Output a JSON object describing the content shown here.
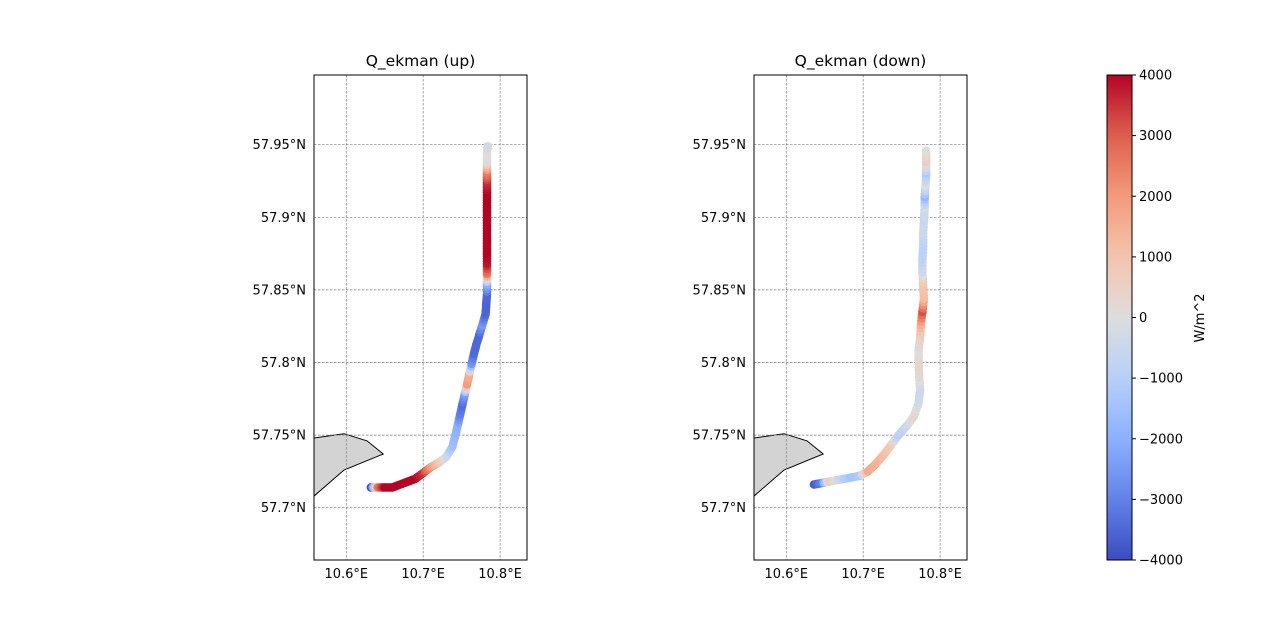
{
  "chart_data": [
    {
      "type": "scatter",
      "title": "Q_ekman (up)",
      "xlabel": "",
      "ylabel": "",
      "xlim": [
        10.558,
        10.835
      ],
      "ylim": [
        57.664,
        57.998
      ],
      "grid": true,
      "x_ticks": [
        10.6,
        10.7,
        10.8
      ],
      "x_tick_labels": [
        "10.6°E",
        "10.7°E",
        "10.8°E"
      ],
      "y_ticks": [
        57.7,
        57.75,
        57.8,
        57.85,
        57.9,
        57.95
      ],
      "y_tick_labels": [
        "57.7°N",
        "57.75°N",
        "57.8°N",
        "57.85°N",
        "57.9°N",
        "57.95°N"
      ],
      "coastline": [
        [
          10.558,
          57.708
        ],
        [
          10.597,
          57.726
        ],
        [
          10.648,
          57.737
        ],
        [
          10.627,
          57.746
        ],
        [
          10.597,
          57.751
        ],
        [
          10.558,
          57.748
        ]
      ],
      "points": [
        {
          "x": 10.632,
          "y": 57.714,
          "v": -4000
        },
        {
          "x": 10.641,
          "y": 57.714,
          "v": 2500
        },
        {
          "x": 10.65,
          "y": 57.714,
          "v": 4000
        },
        {
          "x": 10.66,
          "y": 57.714,
          "v": 4000
        },
        {
          "x": 10.67,
          "y": 57.716,
          "v": 4000
        },
        {
          "x": 10.68,
          "y": 57.718,
          "v": 4000
        },
        {
          "x": 10.69,
          "y": 57.72,
          "v": 4000
        },
        {
          "x": 10.7,
          "y": 57.724,
          "v": 3500
        },
        {
          "x": 10.71,
          "y": 57.728,
          "v": 2000
        },
        {
          "x": 10.72,
          "y": 57.731,
          "v": 1000
        },
        {
          "x": 10.73,
          "y": 57.735,
          "v": -300
        },
        {
          "x": 10.738,
          "y": 57.742,
          "v": -1500
        },
        {
          "x": 10.742,
          "y": 57.75,
          "v": -1800
        },
        {
          "x": 10.745,
          "y": 57.757,
          "v": -2000
        },
        {
          "x": 10.748,
          "y": 57.764,
          "v": -3000
        },
        {
          "x": 10.751,
          "y": 57.771,
          "v": -3400
        },
        {
          "x": 10.754,
          "y": 57.778,
          "v": -2500
        },
        {
          "x": 10.757,
          "y": 57.785,
          "v": 2000
        },
        {
          "x": 10.76,
          "y": 57.792,
          "v": 1500
        },
        {
          "x": 10.763,
          "y": 57.799,
          "v": -2500
        },
        {
          "x": 10.766,
          "y": 57.806,
          "v": -3400
        },
        {
          "x": 10.769,
          "y": 57.812,
          "v": -3500
        },
        {
          "x": 10.773,
          "y": 57.819,
          "v": -3500
        },
        {
          "x": 10.777,
          "y": 57.826,
          "v": -2500
        },
        {
          "x": 10.781,
          "y": 57.833,
          "v": -3500
        },
        {
          "x": 10.782,
          "y": 57.84,
          "v": -3600
        },
        {
          "x": 10.783,
          "y": 57.847,
          "v": -3500
        },
        {
          "x": 10.783,
          "y": 57.854,
          "v": -2000
        },
        {
          "x": 10.783,
          "y": 57.861,
          "v": 2500
        },
        {
          "x": 10.783,
          "y": 57.868,
          "v": 3800
        },
        {
          "x": 10.783,
          "y": 57.875,
          "v": 4000
        },
        {
          "x": 10.783,
          "y": 57.882,
          "v": 4000
        },
        {
          "x": 10.783,
          "y": 57.889,
          "v": 4000
        },
        {
          "x": 10.783,
          "y": 57.896,
          "v": 4000
        },
        {
          "x": 10.783,
          "y": 57.903,
          "v": 4000
        },
        {
          "x": 10.783,
          "y": 57.91,
          "v": 4000
        },
        {
          "x": 10.783,
          "y": 57.917,
          "v": 4000
        },
        {
          "x": 10.783,
          "y": 57.924,
          "v": 3600
        },
        {
          "x": 10.783,
          "y": 57.931,
          "v": 2500
        },
        {
          "x": 10.783,
          "y": 57.938,
          "v": 200
        },
        {
          "x": 10.783,
          "y": 57.945,
          "v": 0
        },
        {
          "x": 10.784,
          "y": 57.949,
          "v": -300
        }
      ]
    },
    {
      "type": "scatter",
      "title": "Q_ekman (down)",
      "xlabel": "",
      "ylabel": "",
      "xlim": [
        10.558,
        10.835
      ],
      "ylim": [
        57.664,
        57.998
      ],
      "grid": true,
      "x_ticks": [
        10.6,
        10.7,
        10.8
      ],
      "x_tick_labels": [
        "10.6°E",
        "10.7°E",
        "10.8°E"
      ],
      "y_ticks": [
        57.7,
        57.75,
        57.8,
        57.85,
        57.9,
        57.95
      ],
      "y_tick_labels": [
        "57.7°N",
        "57.75°N",
        "57.8°N",
        "57.85°N",
        "57.9°N",
        "57.95°N"
      ],
      "coastline": [
        [
          10.558,
          57.708
        ],
        [
          10.597,
          57.726
        ],
        [
          10.648,
          57.737
        ],
        [
          10.627,
          57.746
        ],
        [
          10.597,
          57.751
        ],
        [
          10.558,
          57.748
        ]
      ],
      "points": [
        {
          "x": 10.636,
          "y": 57.716,
          "v": -3800
        },
        {
          "x": 10.646,
          "y": 57.717,
          "v": -3000
        },
        {
          "x": 10.656,
          "y": 57.718,
          "v": 700
        },
        {
          "x": 10.666,
          "y": 57.719,
          "v": -200
        },
        {
          "x": 10.676,
          "y": 57.72,
          "v": -1000
        },
        {
          "x": 10.686,
          "y": 57.721,
          "v": -1400
        },
        {
          "x": 10.696,
          "y": 57.722,
          "v": -1200
        },
        {
          "x": 10.706,
          "y": 57.725,
          "v": 1600
        },
        {
          "x": 10.716,
          "y": 57.73,
          "v": 1500
        },
        {
          "x": 10.726,
          "y": 57.736,
          "v": 1200
        },
        {
          "x": 10.736,
          "y": 57.743,
          "v": 800
        },
        {
          "x": 10.746,
          "y": 57.75,
          "v": -1000
        },
        {
          "x": 10.756,
          "y": 57.756,
          "v": -500
        },
        {
          "x": 10.766,
          "y": 57.763,
          "v": 400
        },
        {
          "x": 10.772,
          "y": 57.772,
          "v": -300
        },
        {
          "x": 10.774,
          "y": 57.781,
          "v": -500
        },
        {
          "x": 10.773,
          "y": 57.79,
          "v": 200
        },
        {
          "x": 10.772,
          "y": 57.799,
          "v": 400
        },
        {
          "x": 10.772,
          "y": 57.808,
          "v": 0
        },
        {
          "x": 10.774,
          "y": 57.817,
          "v": 500
        },
        {
          "x": 10.775,
          "y": 57.826,
          "v": 1500
        },
        {
          "x": 10.777,
          "y": 57.835,
          "v": 3200
        },
        {
          "x": 10.779,
          "y": 57.844,
          "v": 1200
        },
        {
          "x": 10.778,
          "y": 57.853,
          "v": 1000
        },
        {
          "x": 10.777,
          "y": 57.862,
          "v": -300
        },
        {
          "x": 10.777,
          "y": 57.871,
          "v": -800
        },
        {
          "x": 10.778,
          "y": 57.88,
          "v": -900
        },
        {
          "x": 10.778,
          "y": 57.889,
          "v": -400
        },
        {
          "x": 10.779,
          "y": 57.898,
          "v": -600
        },
        {
          "x": 10.78,
          "y": 57.907,
          "v": -200
        },
        {
          "x": 10.78,
          "y": 57.914,
          "v": -1800
        },
        {
          "x": 10.781,
          "y": 57.922,
          "v": 0
        },
        {
          "x": 10.782,
          "y": 57.93,
          "v": -1200
        },
        {
          "x": 10.782,
          "y": 57.938,
          "v": 600
        },
        {
          "x": 10.782,
          "y": 57.946,
          "v": 0
        }
      ]
    }
  ],
  "colorbar": {
    "label": "W/m^2",
    "min": -4000,
    "max": 4000,
    "ticks": [
      4000,
      3000,
      2000,
      1000,
      0,
      -1000,
      -2000,
      -3000,
      -4000
    ],
    "tick_labels": [
      "4000",
      "3000",
      "2000",
      "1000",
      "0",
      "−1000",
      "−2000",
      "−3000",
      "−4000"
    ],
    "colormap": "coolwarm",
    "colors": {
      "low": "#3b4cc0",
      "mid": "#dddddd",
      "high": "#b40426"
    }
  },
  "colors": {
    "land": "#d3d3d3",
    "grid": "#808080"
  }
}
